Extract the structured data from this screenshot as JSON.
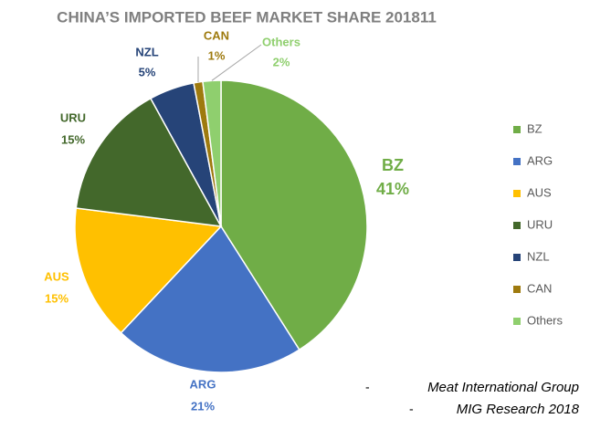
{
  "chart_data": {
    "type": "pie",
    "title": "CHINA’S IMPORTED BEEF MARKET SHARE 201811",
    "categories": [
      "BZ",
      "ARG",
      "AUS",
      "URU",
      "NZL",
      "CAN",
      "Others"
    ],
    "values": [
      41,
      21,
      15,
      15,
      5,
      1,
      2
    ],
    "value_labels": [
      "41%",
      "21%",
      "15%",
      "15%",
      "5%",
      "1%",
      "2%"
    ],
    "colors": [
      "#70ad47",
      "#4472c4",
      "#ffc000",
      "#43682b",
      "#264478",
      "#9e7a0e",
      "#8fcf6e"
    ],
    "legend": "right",
    "sources": [
      {
        "marker": "-",
        "text": "Meat International Group"
      },
      {
        "marker": "-",
        "text": "MIG Research 2018"
      }
    ]
  }
}
